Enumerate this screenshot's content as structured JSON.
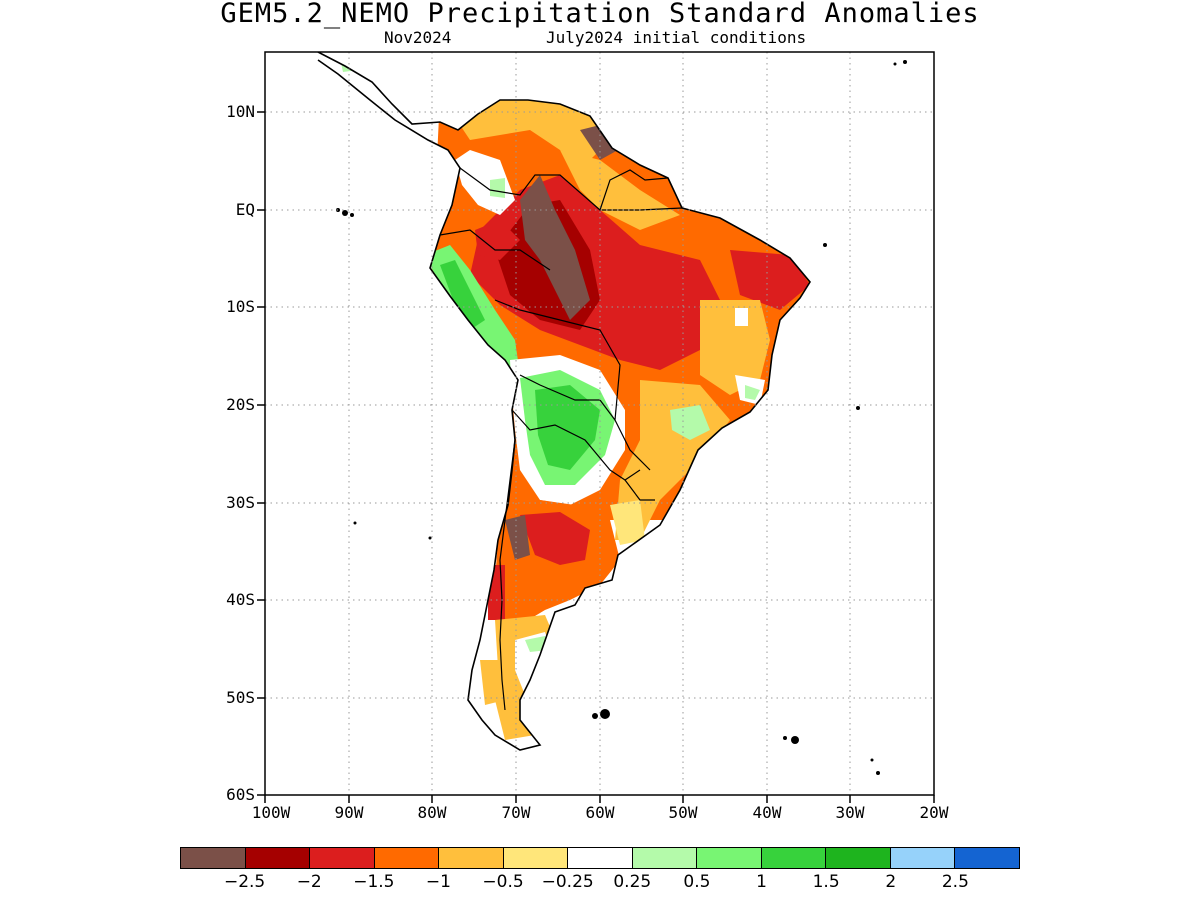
{
  "title": "GEM5.2_NEMO Precipitation Standard Anomalies",
  "subtitle_left": "Nov2024",
  "subtitle_right": "July2024 initial conditions",
  "map": {
    "lat_labels": [
      "10N",
      "EQ",
      "10S",
      "20S",
      "30S",
      "40S",
      "50S",
      "60S"
    ],
    "lon_labels": [
      "100W",
      "90W",
      "80W",
      "70W",
      "60W",
      "50W",
      "40W",
      "30W",
      "20W"
    ],
    "lat_range": [
      15,
      -60
    ],
    "lon_range": [
      -100,
      -20
    ]
  },
  "colorbar": {
    "colors": [
      "#7b5048",
      "#a50000",
      "#dc1e1e",
      "#ff6a00",
      "#ffbf3c",
      "#ffe67a",
      "#ffffff",
      "#b4faaa",
      "#78f573",
      "#37d23c",
      "#1eb41e",
      "#96d2fa",
      "#1464d2"
    ],
    "labels": [
      "−2.5",
      "−2",
      "−1.5",
      "−1",
      "−0.5",
      "−0.25",
      "0.25",
      "0.5",
      "1",
      "1.5",
      "2",
      "2.5"
    ]
  }
}
